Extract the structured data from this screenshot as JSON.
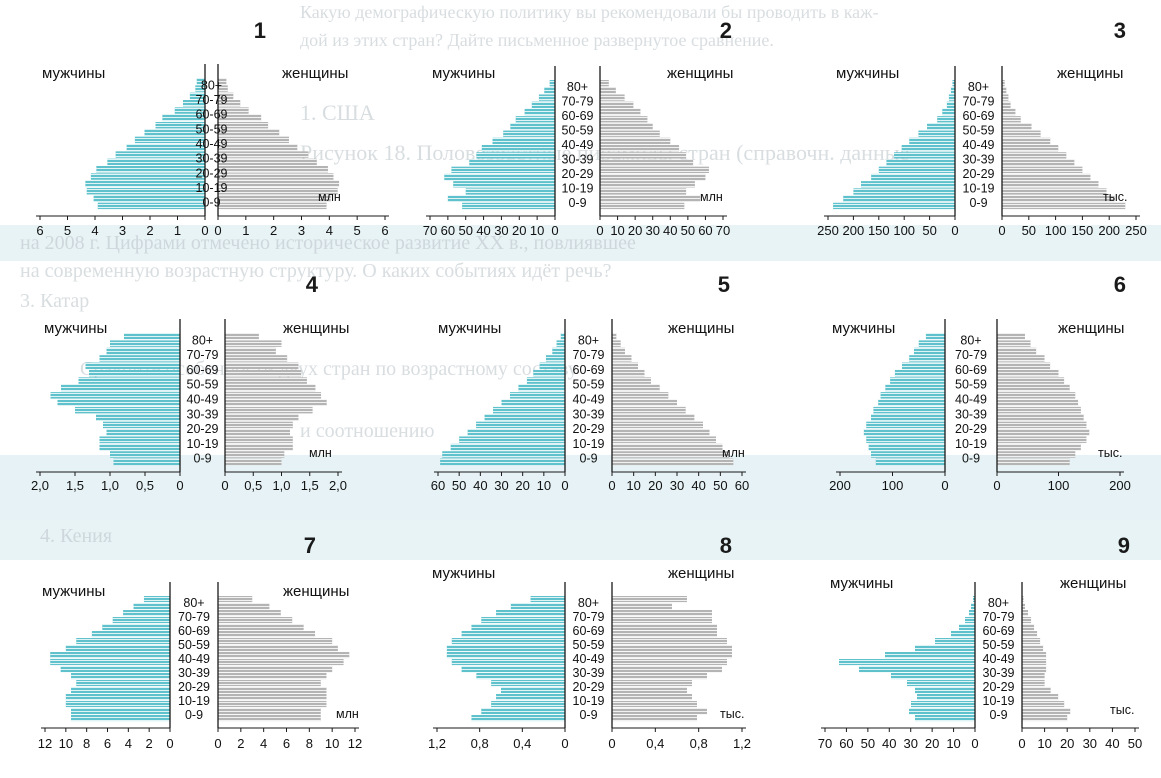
{
  "colors": {
    "male": "#5ec1cb",
    "female": "#b4b4b4",
    "ink": "#1a1a1a",
    "hatch": "#ffffff"
  },
  "background_text": [
    "Какую демографическую политику вы рекомендовали бы проводить в каж-",
    "дой из этих стран? Дайте письменное развернутое сравнение.",
    "1. США",
    "Рисунок 18. Половозрастные пирамиды стран (справочн. данные",
    "на 2008 г. Цифрами отмечено историческое развитие XX в., повлиявшее",
    "на современную возрастную структуру. О каких событиях идёт речь?",
    "3. Катар",
    "Сравните особенности двух стран по возрастному составу",
    "и соотношению",
    "4. Кения"
  ],
  "chart_data": [
    {
      "type": "bar",
      "number": "1",
      "unit": "млн",
      "male_label": "мужчины",
      "female_label": "женщины",
      "age_groups": [
        "80+",
        "70-79",
        "60-69",
        "50-59",
        "40-49",
        "30-39",
        "20-29",
        "10-19",
        "0-9"
      ],
      "male_ticks": [
        "6",
        "5",
        "4",
        "3",
        "2",
        "1",
        "0"
      ],
      "female_ticks": [
        "0",
        "1",
        "2",
        "3",
        "4",
        "5",
        "6"
      ],
      "xmax": 6,
      "male": [
        0.3,
        0.35,
        0.55,
        0.8,
        1.1,
        1.55,
        1.8,
        2.2,
        2.55,
        2.85,
        3.25,
        3.55,
        3.95,
        4.15,
        4.35,
        4.3,
        4.05,
        3.9
      ],
      "female": [
        0.3,
        0.35,
        0.55,
        0.8,
        1.1,
        1.55,
        1.8,
        2.2,
        2.55,
        2.85,
        3.25,
        3.55,
        3.95,
        4.15,
        4.35,
        4.3,
        4.05,
        3.9
      ]
    },
    {
      "type": "bar",
      "number": "2",
      "unit": "млн",
      "male_label": "мужчины",
      "female_label": "женщины",
      "age_groups": [
        "80+",
        "70-79",
        "60-69",
        "50-59",
        "40-49",
        "30-39",
        "20-29",
        "10-19",
        "0-9"
      ],
      "male_ticks": [
        "70",
        "60",
        "50",
        "40",
        "30",
        "20",
        "10",
        "0"
      ],
      "female_ticks": [
        "0",
        "10",
        "20",
        "30",
        "40",
        "50",
        "60",
        "70"
      ],
      "xmax": 70,
      "male": [
        3,
        6,
        9,
        13,
        17,
        22,
        25,
        29,
        35,
        41,
        44,
        48,
        58,
        62,
        57,
        50,
        60,
        52
      ],
      "female": [
        5,
        9,
        14,
        19,
        23,
        27,
        30,
        34,
        40,
        45,
        49,
        53,
        62,
        60,
        54,
        49,
        57,
        48
      ]
    },
    {
      "type": "bar",
      "number": "3",
      "unit": "тыс.",
      "male_label": "мужчины",
      "female_label": "женщины",
      "age_groups": [
        "80+",
        "70-79",
        "60-69",
        "50-59",
        "40-49",
        "30-39",
        "20-29",
        "10-19",
        "0-9"
      ],
      "male_ticks": [
        "250",
        "200",
        "150",
        "100",
        "50",
        "0"
      ],
      "female_ticks": [
        "0",
        "50",
        "100",
        "150",
        "200",
        "250"
      ],
      "xmax": 250,
      "male": [
        5,
        8,
        12,
        16,
        25,
        35,
        55,
        72,
        90,
        105,
        120,
        135,
        150,
        165,
        185,
        200,
        220,
        240
      ],
      "female": [
        5,
        8,
        12,
        16,
        25,
        35,
        55,
        72,
        90,
        105,
        120,
        135,
        150,
        165,
        180,
        195,
        210,
        230
      ]
    },
    {
      "type": "bar",
      "number": "4",
      "unit": "млн",
      "male_label": "мужчины",
      "female_label": "женщины",
      "age_groups": [
        "80+",
        "70-79",
        "60-69",
        "50-59",
        "40-49",
        "30-39",
        "20-29",
        "10-19",
        "0-9"
      ],
      "male_ticks": [
        "2,0",
        "1,5",
        "1,0",
        "0,5",
        "0"
      ],
      "female_ticks": [
        "0",
        "0,5",
        "1,0",
        "1,5",
        "2,0"
      ],
      "xmax": 2.0,
      "male": [
        0.8,
        1.0,
        1.05,
        1.15,
        1.35,
        1.3,
        1.45,
        1.7,
        1.85,
        1.75,
        1.5,
        1.2,
        1.1,
        1.05,
        1.15,
        1.15,
        1.0,
        0.95
      ],
      "female": [
        0.6,
        1.0,
        0.9,
        1.1,
        1.3,
        1.35,
        1.45,
        1.6,
        1.7,
        1.8,
        1.55,
        1.3,
        1.2,
        1.15,
        1.2,
        1.2,
        1.05,
        1.0
      ]
    },
    {
      "type": "bar",
      "number": "5",
      "unit": "млн",
      "male_label": "мужчины",
      "female_label": "женщины",
      "age_groups": [
        "80+",
        "70-79",
        "60-69",
        "50-59",
        "40-49",
        "30-39",
        "20-29",
        "10-19",
        "0-9"
      ],
      "male_ticks": [
        "60",
        "50",
        "40",
        "30",
        "20",
        "10",
        "0"
      ],
      "female_ticks": [
        "0",
        "10",
        "20",
        "30",
        "40",
        "50",
        "60"
      ],
      "xmax": 60,
      "male": [
        2,
        4,
        6,
        9,
        12,
        15,
        18,
        22,
        26,
        30,
        34,
        38,
        42,
        46,
        50,
        54,
        58,
        59
      ],
      "female": [
        2,
        4,
        6,
        9,
        12,
        15,
        18,
        22,
        26,
        30,
        34,
        38,
        42,
        45,
        48,
        51,
        54,
        56
      ]
    },
    {
      "type": "bar",
      "number": "6",
      "unit": "тыс.",
      "male_label": "мужчины",
      "female_label": "женщины",
      "age_groups": [
        "80+",
        "70-79",
        "60-69",
        "50-59",
        "40-49",
        "30-39",
        "20-29",
        "10-19",
        "0-9"
      ],
      "male_ticks": [
        "200",
        "100",
        "0"
      ],
      "female_ticks": [
        "0",
        "100",
        "200"
      ],
      "xmax": 220,
      "male": [
        40,
        55,
        65,
        75,
        90,
        105,
        115,
        125,
        135,
        140,
        150,
        155,
        165,
        170,
        165,
        160,
        155,
        145
      ],
      "female": [
        50,
        60,
        70,
        85,
        95,
        110,
        120,
        130,
        140,
        145,
        150,
        155,
        160,
        165,
        160,
        150,
        140,
        130
      ]
    },
    {
      "type": "bar",
      "number": "7",
      "unit": "млн",
      "male_label": "мужчины",
      "female_label": "женщины",
      "age_groups": [
        "80+",
        "70-79",
        "60-69",
        "50-59",
        "40-49",
        "30-39",
        "20-29",
        "10-19",
        "0-9"
      ],
      "male_ticks": [
        "12",
        "10",
        "8",
        "6",
        "4",
        "2",
        "0"
      ],
      "female_ticks": [
        "0",
        "2",
        "4",
        "6",
        "8",
        "10",
        "12"
      ],
      "xmax": 12,
      "male": [
        2.5,
        3.5,
        4.5,
        5.5,
        6.5,
        7.5,
        9.0,
        10.0,
        11.5,
        11.5,
        10.5,
        9.5,
        9.0,
        9.5,
        10.0,
        10.0,
        9.5,
        9.5
      ],
      "female": [
        3.0,
        4.5,
        5.5,
        6.5,
        7.5,
        8.5,
        10.0,
        10.5,
        11.5,
        11.0,
        10.0,
        9.5,
        9.0,
        9.5,
        9.5,
        9.5,
        9.0,
        9.0
      ]
    },
    {
      "type": "bar",
      "number": "8",
      "unit": "тыс.",
      "male_label": "мужчины",
      "female_label": "женщины",
      "age_groups": [
        "80+",
        "70-79",
        "60-69",
        "50-59",
        "40-49",
        "30-39",
        "20-29",
        "10-19",
        "0-9"
      ],
      "male_ticks": [
        "1,2",
        "0,8",
        "0,4",
        "0"
      ],
      "female_ticks": [
        "0",
        "0,4",
        "0,8",
        "1,2"
      ],
      "xmax": 1.3,
      "male": [
        0.35,
        0.55,
        0.7,
        0.85,
        0.95,
        1.05,
        1.15,
        1.2,
        1.2,
        1.15,
        1.05,
        0.9,
        0.75,
        0.65,
        0.7,
        0.75,
        0.85,
        0.95
      ],
      "female": [
        0.75,
        0.6,
        1.0,
        1.0,
        1.05,
        1.05,
        1.15,
        1.2,
        1.2,
        1.15,
        1.1,
        0.95,
        0.8,
        0.75,
        0.8,
        0.85,
        0.95,
        0.85
      ]
    },
    {
      "type": "bar",
      "number": "9",
      "unit": "тыс.",
      "male_label": "мужчины",
      "female_label": "женщины",
      "age_groups": [
        "80+",
        "70-79",
        "60-69",
        "50-59",
        "40-49",
        "30-39",
        "20-29",
        "10-19",
        "0-9"
      ],
      "male_ticks": [
        "70",
        "60",
        "50",
        "40",
        "30",
        "20",
        "10",
        "0"
      ],
      "female_ticks": [
        "0",
        "10",
        "20",
        "30",
        "40",
        "50"
      ],
      "xmax": 75,
      "male": [
        1,
        2,
        3,
        5,
        8,
        12,
        20,
        30,
        45,
        68,
        58,
        42,
        34,
        30,
        29,
        32,
        33,
        30
      ],
      "female": [
        1,
        2,
        4,
        6,
        8,
        10,
        12,
        14,
        16,
        16,
        16,
        15,
        15,
        19,
        24,
        28,
        32,
        30
      ]
    }
  ]
}
